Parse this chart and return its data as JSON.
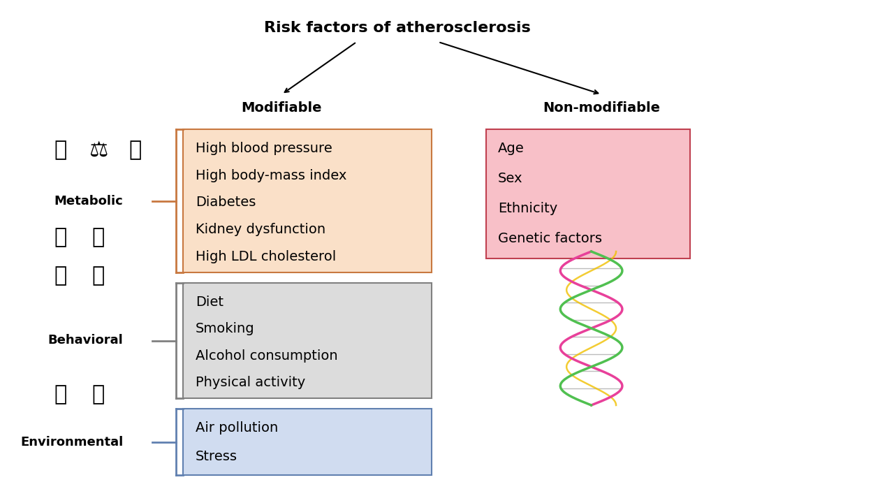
{
  "title": "Risk factors of atherosclerosis",
  "title_fontsize": 16,
  "background_color": "#ffffff",
  "modifiable_label": "Modifiable",
  "non_modifiable_label": "Non-modifiable",
  "categories": [
    {
      "name": "Metabolic",
      "items": [
        "High blood pressure",
        "High body-mass index",
        "Diabetes",
        "Kidney dysfunction",
        "High LDL cholesterol"
      ],
      "box_color": "#FAE0C8",
      "box_edge_color": "#C87840",
      "bracket_color": "#C87840"
    },
    {
      "name": "Behavioral",
      "items": [
        "Diet",
        "Smoking",
        "Alcohol consumption",
        "Physical activity"
      ],
      "box_color": "#DCDCDC",
      "box_edge_color": "#808080",
      "bracket_color": "#808080"
    },
    {
      "name": "Environmental",
      "items": [
        "Air pollution",
        "Stress"
      ],
      "box_color": "#D0DCF0",
      "box_edge_color": "#6080B0",
      "bracket_color": "#6080B0"
    }
  ],
  "non_modifiable": {
    "items": [
      "Age",
      "Sex",
      "Ethnicity",
      "Genetic factors"
    ],
    "box_color": "#F8C0C8",
    "box_edge_color": "#C04050"
  },
  "item_fontsize": 14,
  "category_fontsize": 13,
  "label_fontsize": 14
}
